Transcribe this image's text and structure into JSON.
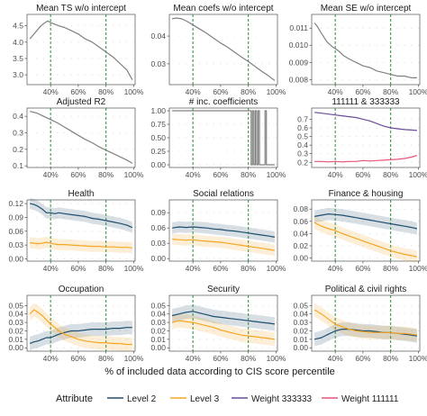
{
  "xlabel": "% of included data according to CIS score percentile",
  "x_tick_labels": [
    "40%",
    "60%",
    "80%",
    "100%"
  ],
  "legend": {
    "title": "Attribute",
    "items": [
      {
        "label": "Level 2",
        "color": "#1f4e6e"
      },
      {
        "label": "Level 3",
        "color": "#f5a623"
      },
      {
        "label": "Weight 333333",
        "color": "#6b4c9a"
      },
      {
        "label": "Weight 111111",
        "color": "#e8557a"
      }
    ]
  },
  "chart_data": [
    {
      "type": "line",
      "title": "Mean TS w/o intercept",
      "x": [
        25,
        27,
        30,
        33,
        36,
        38,
        40,
        43,
        46,
        50,
        55,
        60,
        65,
        70,
        75,
        80,
        85,
        90,
        95,
        99
      ],
      "series": [
        {
          "color": "#808080",
          "values": [
            4.1,
            4.2,
            4.35,
            4.5,
            4.6,
            4.65,
            4.6,
            4.55,
            4.5,
            4.45,
            4.35,
            4.25,
            4.1,
            4.0,
            3.85,
            3.7,
            3.55,
            3.35,
            3.15,
            2.85
          ]
        }
      ],
      "ylim": [
        2.7,
        4.85
      ],
      "yticks": [
        3.0,
        3.5,
        4.0,
        4.5
      ],
      "ytick_labels": [
        "3.0",
        "3.5",
        "4.0",
        "4.5"
      ],
      "vlines": [
        40,
        80
      ]
    },
    {
      "type": "line",
      "title": "Mean coefs w/o intercept",
      "x": [
        25,
        28,
        32,
        36,
        40,
        45,
        50,
        55,
        60,
        65,
        70,
        75,
        80,
        85,
        90,
        95,
        99
      ],
      "series": [
        {
          "color": "#808080",
          "values": [
            0.0462,
            0.0465,
            0.0462,
            0.0452,
            0.044,
            0.0425,
            0.041,
            0.0392,
            0.0375,
            0.036,
            0.0342,
            0.0325,
            0.0308,
            0.029,
            0.0272,
            0.0255,
            0.024
          ]
        }
      ],
      "ylim": [
        0.0225,
        0.0478
      ],
      "yticks": [
        0.03,
        0.04
      ],
      "ytick_labels": [
        "0.03",
        "0.04"
      ],
      "vlines": [
        40,
        80
      ]
    },
    {
      "type": "line",
      "title": "Mean SE w/o intercept",
      "x": [
        25,
        27,
        30,
        34,
        38,
        42,
        46,
        50,
        55,
        60,
        65,
        70,
        75,
        80,
        85,
        90,
        95,
        99
      ],
      "series": [
        {
          "color": "#808080",
          "values": [
            0.0113,
            0.0111,
            0.0107,
            0.0102,
            0.0099,
            0.0097,
            0.0094,
            0.0092,
            0.009,
            0.0088,
            0.0087,
            0.0085,
            0.0084,
            0.0083,
            0.0082,
            0.0082,
            0.0081,
            0.0081
          ]
        }
      ],
      "ylim": [
        0.0077,
        0.0118
      ],
      "yticks": [
        0.008,
        0.009,
        0.01,
        0.011
      ],
      "ytick_labels": [
        "0.008",
        "0.009",
        "0.010",
        "0.011"
      ],
      "vlines": [
        40,
        80
      ]
    },
    {
      "type": "line",
      "title": "Adjusted R2",
      "x": [
        25,
        30,
        35,
        40,
        45,
        50,
        55,
        60,
        65,
        70,
        75,
        80,
        85,
        90,
        95,
        99
      ],
      "series": [
        {
          "color": "#808080",
          "values": [
            0.43,
            0.42,
            0.4,
            0.38,
            0.36,
            0.335,
            0.31,
            0.285,
            0.26,
            0.24,
            0.215,
            0.195,
            0.175,
            0.155,
            0.135,
            0.115
          ]
        }
      ],
      "ylim": [
        0.09,
        0.45
      ],
      "yticks": [
        0.1,
        0.2,
        0.3,
        0.4
      ],
      "ytick_labels": [
        "0.1",
        "0.2",
        "0.3",
        "0.4"
      ],
      "vlines": [
        40,
        80
      ]
    },
    {
      "type": "line",
      "title": "# inc. coefficients",
      "x": [
        25,
        82,
        82,
        83,
        83,
        84,
        84,
        85,
        85,
        86,
        86,
        87,
        87,
        88,
        88,
        92,
        92,
        93,
        93,
        99
      ],
      "series": [
        {
          "color": "#808080",
          "values": [
            1,
            1,
            0,
            0,
            1,
            1,
            0,
            0,
            1,
            1,
            0,
            0,
            1,
            1,
            0,
            0,
            1,
            1,
            0,
            0
          ]
        }
      ],
      "ylim": [
        -0.05,
        1.05
      ],
      "yticks": [
        0,
        0.25,
        0.5,
        0.75,
        1.0
      ],
      "ytick_labels": [
        "0.00",
        "0.25",
        "0.50",
        "0.75",
        "1.00"
      ],
      "vlines": [
        40,
        80
      ]
    },
    {
      "type": "line",
      "title": "111111 & 333333",
      "x": [
        25,
        30,
        35,
        40,
        45,
        50,
        55,
        60,
        65,
        70,
        75,
        80,
        85,
        90,
        95,
        99
      ],
      "series": [
        {
          "name": "Weight 333333",
          "color": "#6b4c9a",
          "values": [
            0.78,
            0.77,
            0.76,
            0.75,
            0.74,
            0.73,
            0.72,
            0.7,
            0.68,
            0.65,
            0.62,
            0.6,
            0.59,
            0.58,
            0.575,
            0.57
          ]
        },
        {
          "name": "Weight 111111",
          "color": "#e8557a",
          "values": [
            0.21,
            0.21,
            0.205,
            0.21,
            0.205,
            0.21,
            0.21,
            0.22,
            0.215,
            0.22,
            0.225,
            0.23,
            0.235,
            0.245,
            0.26,
            0.28
          ]
        }
      ],
      "ylim": [
        0.14,
        0.83
      ],
      "yticks": [
        0.2,
        0.3,
        0.4,
        0.5,
        0.6,
        0.7
      ],
      "ytick_labels": [
        "0.2",
        "0.3",
        "0.4",
        "0.5",
        "0.6",
        "0.7"
      ],
      "vlines": [
        40,
        80
      ]
    },
    {
      "type": "line",
      "title": "Health",
      "x": [
        25,
        28,
        31,
        34,
        37,
        40,
        43,
        46,
        50,
        55,
        60,
        65,
        70,
        75,
        80,
        85,
        90,
        95,
        99
      ],
      "series": [
        {
          "name": "Level 2",
          "color": "#1f4e6e",
          "values": [
            0.12,
            0.118,
            0.114,
            0.108,
            0.1,
            0.1,
            0.098,
            0.1,
            0.098,
            0.096,
            0.094,
            0.092,
            0.088,
            0.086,
            0.083,
            0.08,
            0.077,
            0.073,
            0.068
          ]
        },
        {
          "name": "Level 3",
          "color": "#f5a623",
          "values": [
            0.035,
            0.034,
            0.033,
            0.034,
            0.036,
            0.034,
            0.032,
            0.031,
            0.031,
            0.03,
            0.029,
            0.028,
            0.027,
            0.027,
            0.026,
            0.026,
            0.025,
            0.025,
            0.024
          ]
        }
      ],
      "band_halfwidth": 0.012,
      "ylim": [
        -0.005,
        0.128
      ],
      "yticks": [
        0,
        0.03,
        0.06,
        0.09,
        0.12
      ],
      "ytick_labels": [
        "0.00",
        "0.03",
        "0.06",
        "0.09",
        "0.12"
      ],
      "vlines": [
        40,
        80
      ]
    },
    {
      "type": "line",
      "title": "Social relations",
      "x": [
        25,
        30,
        35,
        40,
        45,
        50,
        55,
        60,
        65,
        70,
        75,
        80,
        85,
        90,
        95,
        99
      ],
      "series": [
        {
          "name": "Level 2",
          "color": "#1f4e6e",
          "values": [
            0.06,
            0.062,
            0.061,
            0.062,
            0.061,
            0.06,
            0.058,
            0.057,
            0.055,
            0.054,
            0.052,
            0.05,
            0.048,
            0.046,
            0.044,
            0.042
          ]
        },
        {
          "name": "Level 3",
          "color": "#f5a623",
          "values": [
            0.038,
            0.037,
            0.036,
            0.037,
            0.035,
            0.034,
            0.033,
            0.032,
            0.03,
            0.028,
            0.026,
            0.024,
            0.022,
            0.02,
            0.018,
            0.016
          ]
        }
      ],
      "band_halfwidth": 0.011,
      "ylim": [
        -0.005,
        0.115
      ],
      "yticks": [
        0,
        0.03,
        0.06,
        0.09
      ],
      "ytick_labels": [
        "0.00",
        "0.03",
        "0.06",
        "0.09"
      ],
      "vlines": [
        40,
        80
      ]
    },
    {
      "type": "line",
      "title": "Finance & housing",
      "x": [
        25,
        30,
        35,
        40,
        45,
        50,
        55,
        60,
        65,
        70,
        75,
        80,
        85,
        90,
        95,
        99
      ],
      "series": [
        {
          "name": "Level 2",
          "color": "#1f4e6e",
          "values": [
            0.068,
            0.07,
            0.072,
            0.071,
            0.07,
            0.068,
            0.066,
            0.064,
            0.062,
            0.06,
            0.058,
            0.056,
            0.054,
            0.052,
            0.05,
            0.048
          ]
        },
        {
          "name": "Level 3",
          "color": "#f5a623",
          "values": [
            0.058,
            0.052,
            0.048,
            0.045,
            0.04,
            0.036,
            0.032,
            0.028,
            0.024,
            0.02,
            0.016,
            0.012,
            0.009,
            0.006,
            0.004,
            0.002
          ]
        }
      ],
      "band_halfwidth": 0.01,
      "ylim": [
        -0.005,
        0.095
      ],
      "yticks": [
        0,
        0.02,
        0.04,
        0.06,
        0.08
      ],
      "ytick_labels": [
        "0.00",
        "0.02",
        "0.04",
        "0.06",
        "0.08"
      ],
      "vlines": [
        40,
        80
      ]
    },
    {
      "type": "line",
      "title": "Occupation",
      "x": [
        25,
        28,
        31,
        34,
        37,
        40,
        43,
        46,
        50,
        55,
        60,
        65,
        70,
        75,
        80,
        85,
        90,
        95,
        99
      ],
      "series": [
        {
          "name": "Level 2",
          "color": "#1f4e6e",
          "values": [
            0.005,
            0.007,
            0.008,
            0.01,
            0.012,
            0.012,
            0.014,
            0.016,
            0.018,
            0.02,
            0.02,
            0.021,
            0.022,
            0.022,
            0.022,
            0.023,
            0.023,
            0.024,
            0.024
          ]
        },
        {
          "name": "Level 3",
          "color": "#f5a623",
          "values": [
            0.04,
            0.045,
            0.042,
            0.038,
            0.033,
            0.028,
            0.024,
            0.02,
            0.016,
            0.013,
            0.01,
            0.008,
            0.007,
            0.006,
            0.006,
            0.005,
            0.005,
            0.004,
            0.004
          ]
        }
      ],
      "band_halfwidth": 0.008,
      "ylim": [
        -0.004,
        0.062
      ],
      "yticks": [
        0,
        0.01,
        0.02,
        0.03,
        0.04,
        0.05
      ],
      "ytick_labels": [
        "0.00",
        "0.01",
        "0.02",
        "0.03",
        "0.04",
        "0.05"
      ],
      "vlines": [
        40,
        80
      ]
    },
    {
      "type": "line",
      "title": "Security",
      "x": [
        25,
        30,
        35,
        40,
        45,
        50,
        55,
        60,
        65,
        70,
        75,
        80,
        85,
        90,
        95,
        99
      ],
      "series": [
        {
          "name": "Level 2",
          "color": "#1f4e6e",
          "values": [
            0.038,
            0.04,
            0.042,
            0.043,
            0.041,
            0.039,
            0.037,
            0.036,
            0.035,
            0.034,
            0.033,
            0.032,
            0.031,
            0.03,
            0.029,
            0.028
          ]
        },
        {
          "name": "Level 3",
          "color": "#f5a623",
          "values": [
            0.03,
            0.032,
            0.031,
            0.03,
            0.028,
            0.026,
            0.024,
            0.021,
            0.019,
            0.017,
            0.015,
            0.014,
            0.013,
            0.012,
            0.011,
            0.01
          ]
        }
      ],
      "band_halfwidth": 0.008,
      "ylim": [
        -0.004,
        0.062
      ],
      "yticks": [
        0,
        0.01,
        0.02,
        0.03,
        0.04,
        0.05
      ],
      "ytick_labels": [
        "0.00",
        "0.01",
        "0.02",
        "0.03",
        "0.04",
        "0.05"
      ],
      "vlines": [
        40,
        80
      ]
    },
    {
      "type": "line",
      "title": "Political & civil rights",
      "x": [
        25,
        30,
        35,
        40,
        45,
        50,
        55,
        60,
        65,
        70,
        75,
        80,
        85,
        90,
        95,
        99
      ],
      "series": [
        {
          "name": "Level 2",
          "color": "#1f4e6e",
          "values": [
            0.01,
            0.012,
            0.016,
            0.02,
            0.022,
            0.022,
            0.021,
            0.02,
            0.02,
            0.019,
            0.018,
            0.018,
            0.017,
            0.016,
            0.015,
            0.014
          ]
        },
        {
          "name": "Level 3",
          "color": "#f5a623",
          "values": [
            0.045,
            0.04,
            0.034,
            0.028,
            0.025,
            0.022,
            0.02,
            0.019,
            0.018,
            0.018,
            0.018,
            0.018,
            0.017,
            0.017,
            0.016,
            0.015
          ]
        }
      ],
      "band_halfwidth": 0.008,
      "ylim": [
        -0.004,
        0.062
      ],
      "yticks": [
        0,
        0.01,
        0.02,
        0.03,
        0.04,
        0.05
      ],
      "ytick_labels": [
        "0.00",
        "0.01",
        "0.02",
        "0.03",
        "0.04",
        "0.05"
      ],
      "vlines": [
        40,
        80
      ]
    }
  ]
}
